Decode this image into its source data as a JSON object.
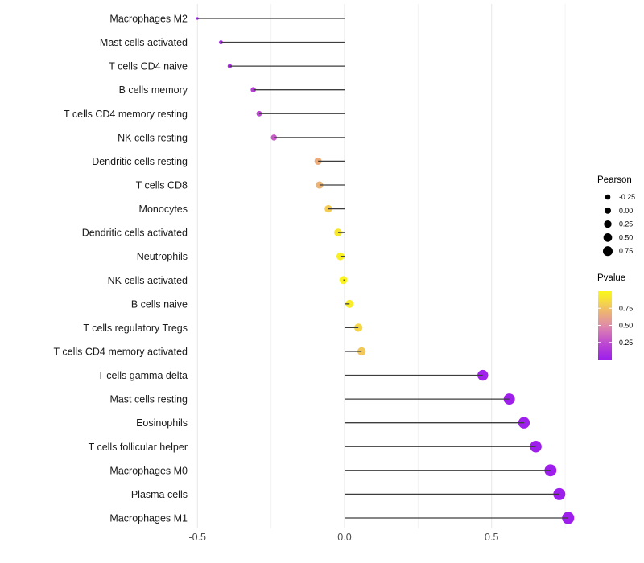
{
  "chart_data": {
    "type": "lollipop",
    "orientation": "horizontal",
    "title": "",
    "xlabel": "",
    "ylabel": "",
    "xlim": [
      -0.52,
      0.785
    ],
    "grid": "vertical-only",
    "x_ticks": [
      {
        "value": -0.5,
        "label": "-0.5"
      },
      {
        "value": 0.0,
        "label": "0.0"
      },
      {
        "value": 0.5,
        "label": "0.5"
      }
    ],
    "x_minor_gridlines": [
      -0.25,
      0.25,
      0.75
    ],
    "rows": [
      {
        "label": "Macrophages M2",
        "pearson": -0.5,
        "pvalue": 0.02
      },
      {
        "label": "Mast cells activated",
        "pearson": -0.42,
        "pvalue": 0.06
      },
      {
        "label": "T cells CD4 naive",
        "pearson": -0.39,
        "pvalue": 0.09
      },
      {
        "label": "B cells memory",
        "pearson": -0.31,
        "pvalue": 0.18
      },
      {
        "label": "T cells CD4 memory resting",
        "pearson": -0.29,
        "pvalue": 0.22
      },
      {
        "label": "NK cells resting",
        "pearson": -0.24,
        "pvalue": 0.3
      },
      {
        "label": "Dendritic cells resting",
        "pearson": -0.09,
        "pvalue": 0.66
      },
      {
        "label": "T cells CD8",
        "pearson": -0.085,
        "pvalue": 0.69
      },
      {
        "label": "Monocytes",
        "pearson": -0.055,
        "pvalue": 0.8
      },
      {
        "label": "Dendritic cells activated",
        "pearson": -0.022,
        "pvalue": 0.91
      },
      {
        "label": "Neutrophils",
        "pearson": -0.014,
        "pvalue": 0.96
      },
      {
        "label": "NK cells activated",
        "pearson": -0.004,
        "pvalue": 0.98
      },
      {
        "label": "B cells naive",
        "pearson": 0.017,
        "pvalue": 0.93
      },
      {
        "label": "T cells regulatory  Tregs",
        "pearson": 0.047,
        "pvalue": 0.84
      },
      {
        "label": "T cells CD4 memory activated",
        "pearson": 0.058,
        "pvalue": 0.78
      },
      {
        "label": "T cells gamma delta",
        "pearson": 0.47,
        "pvalue": 0.02
      },
      {
        "label": "Mast cells resting",
        "pearson": 0.56,
        "pvalue": 0.008
      },
      {
        "label": "Eosinophils",
        "pearson": 0.61,
        "pvalue": 0.004
      },
      {
        "label": "T cells follicular helper",
        "pearson": 0.65,
        "pvalue": 0.002
      },
      {
        "label": "Macrophages M0",
        "pearson": 0.7,
        "pvalue": 0.001
      },
      {
        "label": "Plasma cells",
        "pearson": 0.73,
        "pvalue": 0.0006
      },
      {
        "label": "Macrophages M1",
        "pearson": 0.76,
        "pvalue": 0.0003
      }
    ],
    "legend_size": {
      "title": "Pearson",
      "values": [
        -0.25,
        0.0,
        0.25,
        0.5,
        0.75
      ],
      "labels": [
        "-0.25",
        "0.00",
        "0.25",
        "0.50",
        "0.75"
      ],
      "dot_color": "#000000"
    },
    "legend_color": {
      "title": "Pvalue",
      "tick_labels": [
        "0.75",
        "0.50",
        "0.25"
      ],
      "tick_values": [
        0.75,
        0.5,
        0.25
      ],
      "range": [
        0,
        1
      ]
    },
    "colors": {
      "pvalue_colormap_stops": [
        [
          0.0,
          "#9E1FEC"
        ],
        [
          0.18,
          "#B53ED6"
        ],
        [
          0.32,
          "#C95CC6"
        ],
        [
          0.5,
          "#DF8CA8"
        ],
        [
          0.66,
          "#EAAC7D"
        ],
        [
          0.8,
          "#F3CD54"
        ],
        [
          0.93,
          "#F9EC28"
        ],
        [
          1.0,
          "#FAF61C"
        ]
      ],
      "segment": "#3d3d3d",
      "grid_major": "#e4e4e4",
      "grid_minor": "#f2f2f2",
      "background": "#ffffff"
    }
  }
}
